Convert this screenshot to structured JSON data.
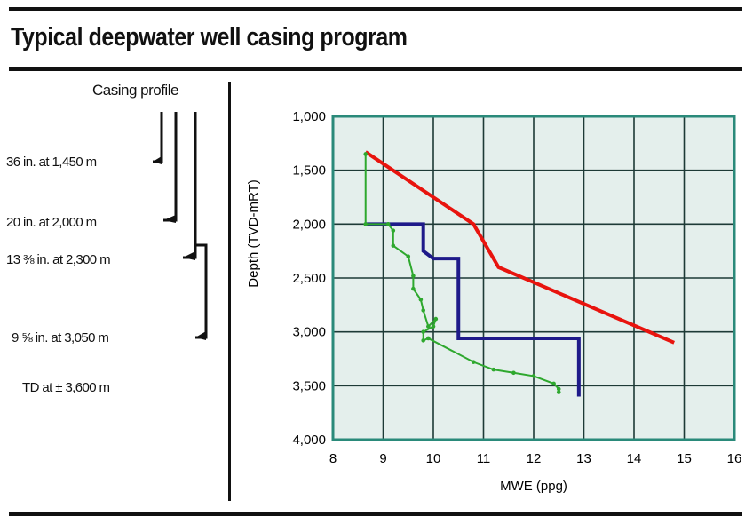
{
  "title": "Typical deepwater well casing program",
  "casing_profile": {
    "heading": "Casing profile",
    "items": [
      {
        "label": "36 in. at 1,450 m"
      },
      {
        "label": "20 in. at 2,000 m"
      },
      {
        "label": "13 ⅜ in. at 2,300 m"
      },
      {
        "label": "9 ⅝ in. at 3,050 m"
      },
      {
        "label": "TD at ± 3,600 m"
      }
    ]
  },
  "chart_data": {
    "type": "line",
    "title": "",
    "xlabel": "MWE (ppg)",
    "ylabel": "Depth (TVD-mRT)",
    "xlim": [
      8,
      16
    ],
    "ylim": [
      1000,
      4000
    ],
    "y_inverted": true,
    "grid": true,
    "xticks": [
      "8",
      "9",
      "10",
      "11",
      "12",
      "13",
      "14",
      "15",
      "16"
    ],
    "yticks": [
      "1,000",
      "1,500",
      "2,000",
      "2,500",
      "3,000",
      "3,500",
      "4,000"
    ],
    "plot_background": "#e4efec",
    "frame_color": "#2a8a7a",
    "series": [
      {
        "color": "#e8140e",
        "points": [
          [
            8.65,
            1330
          ],
          [
            10.8,
            2000
          ],
          [
            11.3,
            2400
          ],
          [
            14.8,
            3100
          ]
        ]
      },
      {
        "color": "#1e1a8a",
        "points": [
          [
            8.65,
            2000
          ],
          [
            9.8,
            2000
          ],
          [
            9.8,
            2250
          ],
          [
            10.0,
            2320
          ],
          [
            10.5,
            2320
          ],
          [
            10.5,
            3060
          ],
          [
            12.9,
            3060
          ],
          [
            12.9,
            3600
          ]
        ]
      },
      {
        "color": "#2ea82e",
        "points": [
          [
            8.65,
            1350
          ],
          [
            8.65,
            2000
          ],
          [
            9.1,
            2000
          ],
          [
            9.2,
            2060
          ],
          [
            9.2,
            2200
          ],
          [
            9.5,
            2300
          ],
          [
            9.6,
            2480
          ],
          [
            9.6,
            2600
          ],
          [
            9.75,
            2700
          ],
          [
            9.8,
            2800
          ],
          [
            9.9,
            2950
          ],
          [
            10.05,
            2880
          ],
          [
            10.0,
            2950
          ],
          [
            9.8,
            3000
          ],
          [
            9.8,
            3080
          ],
          [
            9.9,
            3060
          ],
          [
            10.8,
            3280
          ],
          [
            11.2,
            3350
          ],
          [
            11.6,
            3380
          ],
          [
            12.0,
            3410
          ],
          [
            12.4,
            3480
          ],
          [
            12.5,
            3530
          ],
          [
            12.5,
            3560
          ]
        ]
      }
    ]
  }
}
